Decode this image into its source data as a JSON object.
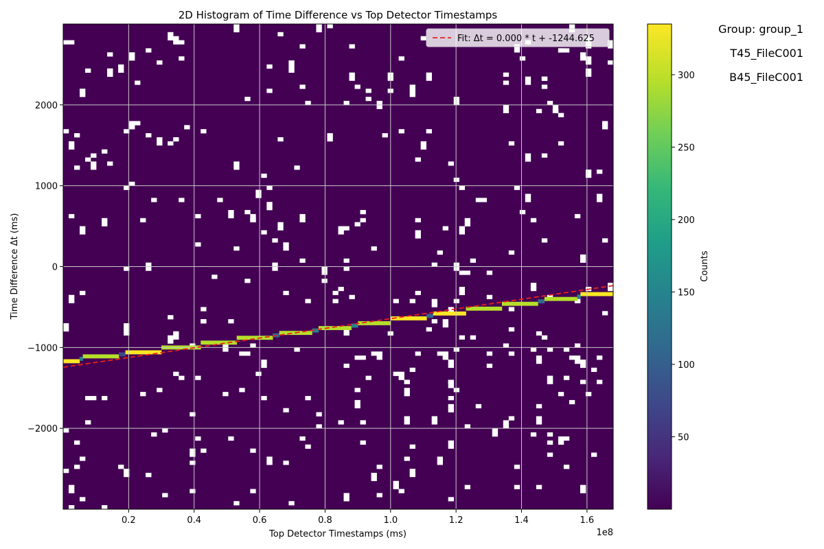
{
  "group_labels": {
    "group": "Group: group_1",
    "top_file": "T45_FileC001",
    "bottom_file": "B45_FileC001"
  },
  "colors": {
    "background": "#440154",
    "fit_line": "#e8221b",
    "grid": "#c8c8c8",
    "empty_bin": "#ffffff",
    "viridis": [
      "#440154",
      "#482878",
      "#3e4989",
      "#31688e",
      "#26828e",
      "#1f9e89",
      "#35b779",
      "#6ece58",
      "#b5de2b",
      "#fde725"
    ]
  },
  "chart_data": {
    "type": "heatmap",
    "title": "2D Histogram of Time Difference vs Top Detector Timestamps",
    "xlabel": "Top Detector Timestamps (ms)",
    "ylabel": "Time Difference Δt (ms)",
    "x_offset_label": "1e8",
    "xlim": [
      0.0,
      1.68
    ],
    "ylim": [
      -3000,
      3000
    ],
    "x_ticks": [
      0.2,
      0.4,
      0.6,
      0.8,
      1.0,
      1.2,
      1.4,
      1.6
    ],
    "x_tick_labels": [
      "0.2",
      "0.4",
      "0.6",
      "0.8",
      "1.0",
      "1.2",
      "1.4",
      "1.6"
    ],
    "y_ticks": [
      -2000,
      -1000,
      0,
      1000,
      2000
    ],
    "y_tick_labels": [
      "−2000",
      "−1000",
      "0",
      "1000",
      "2000"
    ],
    "grid": true,
    "colorbar": {
      "label": "Counts",
      "range": [
        0,
        335
      ],
      "ticks": [
        50,
        100,
        150,
        200,
        250,
        300
      ],
      "tick_labels": [
        "50",
        "100",
        "150",
        "200",
        "250",
        "300"
      ]
    },
    "fit": {
      "legend_label": "Fit: Δt = 0.000 * t + -1244.625",
      "start": [
        0.0,
        -1244.625
      ],
      "end": [
        1.68,
        -235
      ],
      "legend_position": "top-right"
    },
    "band": [
      {
        "x": [
          0.0,
          0.05
        ],
        "dt": -1170,
        "counts": 330
      },
      {
        "x": [
          0.05,
          0.06
        ],
        "dt": -1140,
        "counts": 150
      },
      {
        "x": [
          0.06,
          0.17
        ],
        "dt": -1110,
        "counts": 315
      },
      {
        "x": [
          0.17,
          0.19
        ],
        "dt": -1085,
        "counts": 90
      },
      {
        "x": [
          0.19,
          0.3
        ],
        "dt": -1060,
        "counts": 320
      },
      {
        "x": [
          0.3,
          0.42
        ],
        "dt": -1000,
        "counts": 300
      },
      {
        "x": [
          0.42,
          0.53
        ],
        "dt": -940,
        "counts": 290
      },
      {
        "x": [
          0.53,
          0.64
        ],
        "dt": -880,
        "counts": 305
      },
      {
        "x": [
          0.64,
          0.66
        ],
        "dt": -850,
        "counts": 110
      },
      {
        "x": [
          0.66,
          0.76
        ],
        "dt": -820,
        "counts": 310
      },
      {
        "x": [
          0.76,
          0.78
        ],
        "dt": -790,
        "counts": 140
      },
      {
        "x": [
          0.78,
          0.88
        ],
        "dt": -760,
        "counts": 300
      },
      {
        "x": [
          0.88,
          0.9
        ],
        "dt": -730,
        "counts": 150
      },
      {
        "x": [
          0.9,
          1.0
        ],
        "dt": -700,
        "counts": 310
      },
      {
        "x": [
          1.0,
          1.11
        ],
        "dt": -640,
        "counts": 320
      },
      {
        "x": [
          1.11,
          1.13
        ],
        "dt": -610,
        "counts": 120
      },
      {
        "x": [
          1.13,
          1.23
        ],
        "dt": -580,
        "counts": 330
      },
      {
        "x": [
          1.23,
          1.34
        ],
        "dt": -520,
        "counts": 310
      },
      {
        "x": [
          1.34,
          1.45
        ],
        "dt": -460,
        "counts": 300
      },
      {
        "x": [
          1.45,
          1.47
        ],
        "dt": -430,
        "counts": 130
      },
      {
        "x": [
          1.47,
          1.57
        ],
        "dt": -400,
        "counts": 290
      },
      {
        "x": [
          1.57,
          1.58
        ],
        "dt": -370,
        "counts": 160
      },
      {
        "x": [
          1.58,
          1.68
        ],
        "dt": -340,
        "counts": 330
      }
    ]
  }
}
